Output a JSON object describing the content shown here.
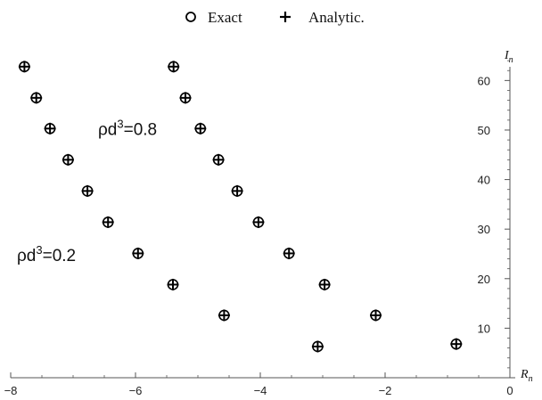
{
  "chart_data": {
    "type": "scatter",
    "title": "",
    "xlabel": "R",
    "xlabel_sub": "n",
    "ylabel": "I",
    "ylabel_sub": "n",
    "xlim": [
      -8,
      0
    ],
    "ylim": [
      0,
      66
    ],
    "xticks": [
      -8,
      -6,
      -4,
      -2,
      0
    ],
    "xtick_labels": [
      "−8",
      "−6",
      "−4",
      "−2",
      "0"
    ],
    "yticks": [
      10,
      20,
      30,
      40,
      50,
      60
    ],
    "ytick_labels": [
      "10",
      "20",
      "30",
      "40",
      "50",
      "60"
    ],
    "grid": false,
    "legend": {
      "placement": "top-center",
      "entries": [
        {
          "label": "Exact",
          "marker": "circle"
        },
        {
          "label": "Analytic.",
          "marker": "plus"
        }
      ]
    },
    "series": [
      {
        "name": "Exact",
        "marker": "circle",
        "groups": [
          {
            "x": [
              -7.78,
              -7.59,
              -7.37,
              -7.08,
              -6.77,
              -6.44,
              -5.96,
              -5.4,
              -4.58,
              -3.08,
              -0.86
            ],
            "y": [
              62.8,
              56.5,
              50.3,
              44.0,
              37.7,
              31.4,
              25.1,
              18.8,
              12.6,
              6.3,
              6.8
            ]
          },
          {
            "x": [
              -5.39,
              -5.2,
              -4.96,
              -4.67,
              -4.37,
              -4.03,
              -3.54,
              -2.97,
              -2.15
            ],
            "y": [
              62.8,
              56.5,
              50.3,
              44.0,
              37.7,
              31.4,
              25.1,
              18.8,
              12.6
            ]
          }
        ]
      },
      {
        "name": "Analytic.",
        "marker": "plus",
        "groups": [
          {
            "x": [
              -7.78,
              -7.59,
              -7.37,
              -7.08,
              -6.77,
              -6.44,
              -5.96,
              -5.4,
              -4.58,
              -3.08,
              -0.86
            ],
            "y": [
              62.8,
              56.5,
              50.3,
              44.0,
              37.7,
              31.4,
              25.1,
              18.8,
              12.6,
              6.3,
              6.8
            ]
          },
          {
            "x": [
              -5.39,
              -5.2,
              -4.96,
              -4.67,
              -4.37,
              -4.03,
              -3.54,
              -2.97,
              -2.15
            ],
            "y": [
              62.8,
              56.5,
              50.3,
              44.0,
              37.7,
              31.4,
              25.1,
              18.8,
              12.6
            ]
          }
        ]
      }
    ],
    "annotations": [
      {
        "prefix": "ρd",
        "sup": "3",
        "suffix": "=0.8",
        "x": -6.6,
        "y": 50.3
      },
      {
        "prefix": "ρd",
        "sup": "3",
        "suffix": "=0.2",
        "x": -7.9,
        "y": 24.8
      }
    ],
    "colors": {
      "marker": "#000000",
      "axis": "#555555",
      "background": "#ffffff"
    }
  }
}
